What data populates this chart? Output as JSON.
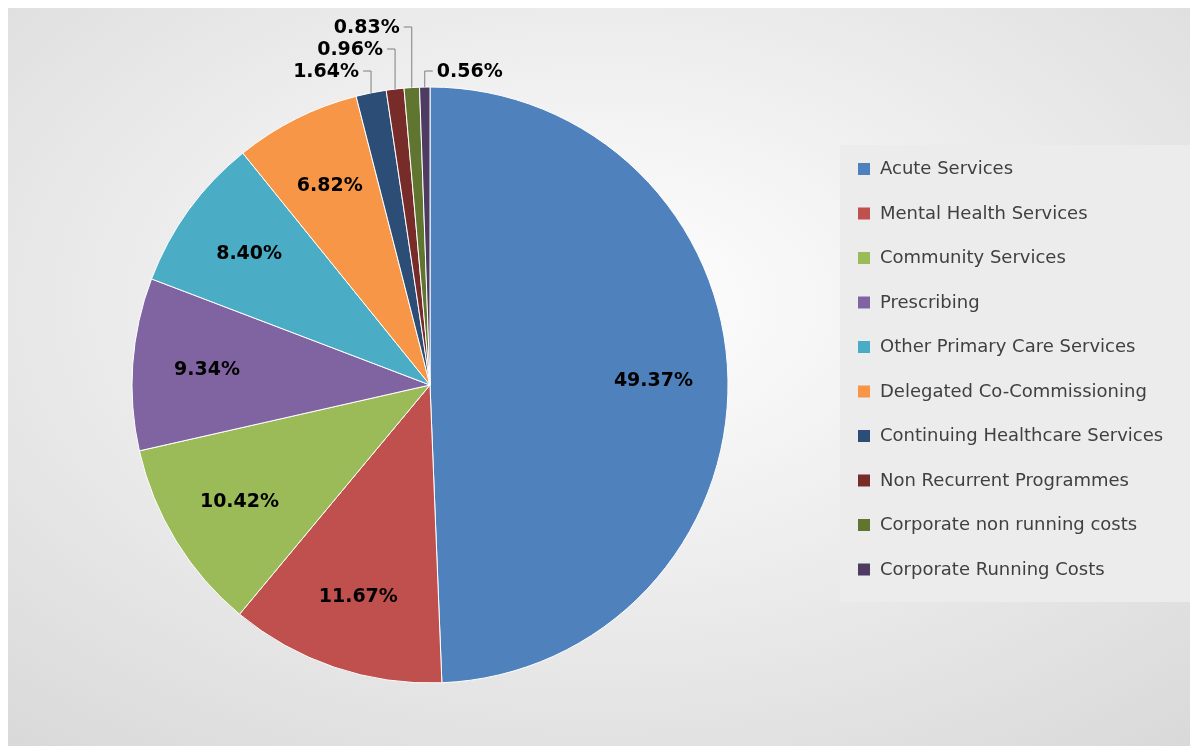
{
  "chart_data": {
    "type": "pie",
    "categories": [
      "Acute Services",
      "Mental Health Services",
      "Community Services",
      "Prescribing",
      "Other Primary Care Services",
      "Delegated Co-Commissioning",
      "Continuing Healthcare Services",
      "Non Recurrent Programmes",
      "Corporate non running costs",
      "Corporate Running Costs"
    ],
    "values": [
      49.37,
      11.67,
      10.42,
      9.34,
      8.4,
      6.82,
      1.64,
      0.96,
      0.83,
      0.56
    ],
    "value_labels": [
      "49.37%",
      "11.67%",
      "10.42%",
      "9.34%",
      "8.40%",
      "6.82%",
      "1.64%",
      "0.96%",
      "0.83%",
      "0.56%"
    ],
    "colors": [
      "#4f81bd",
      "#c0504d",
      "#9bbb59",
      "#8064a2",
      "#4bacc6",
      "#f79646",
      "#2c4d75",
      "#772c2a",
      "#5f7530",
      "#4d3b62"
    ],
    "legend": "right"
  }
}
